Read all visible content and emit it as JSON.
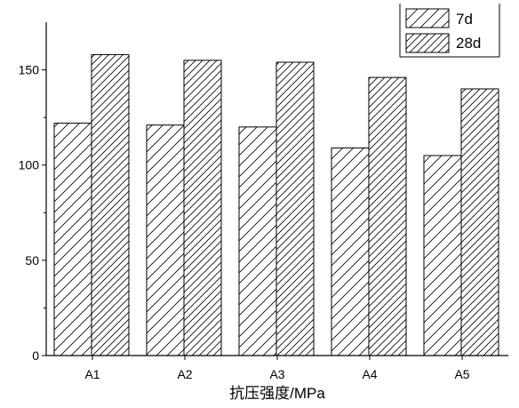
{
  "chart_data": {
    "type": "bar",
    "categories": [
      "A1",
      "A2",
      "A3",
      "A4",
      "A5"
    ],
    "series": [
      {
        "name": "7d",
        "values": [
          122,
          121,
          120,
          109,
          105
        ],
        "pattern": "hatch-single"
      },
      {
        "name": "28d",
        "values": [
          158,
          155,
          154,
          146,
          140
        ],
        "pattern": "hatch-dense"
      }
    ],
    "xlabel": "抗压强度/MPa",
    "ylabel": "",
    "ylim": [
      0,
      175
    ],
    "yticks": [
      0,
      50,
      100,
      150
    ],
    "grid": false,
    "legend_position": "top-right",
    "colors": {
      "bar_fill": "#ffffff",
      "stroke": "#000000"
    }
  }
}
